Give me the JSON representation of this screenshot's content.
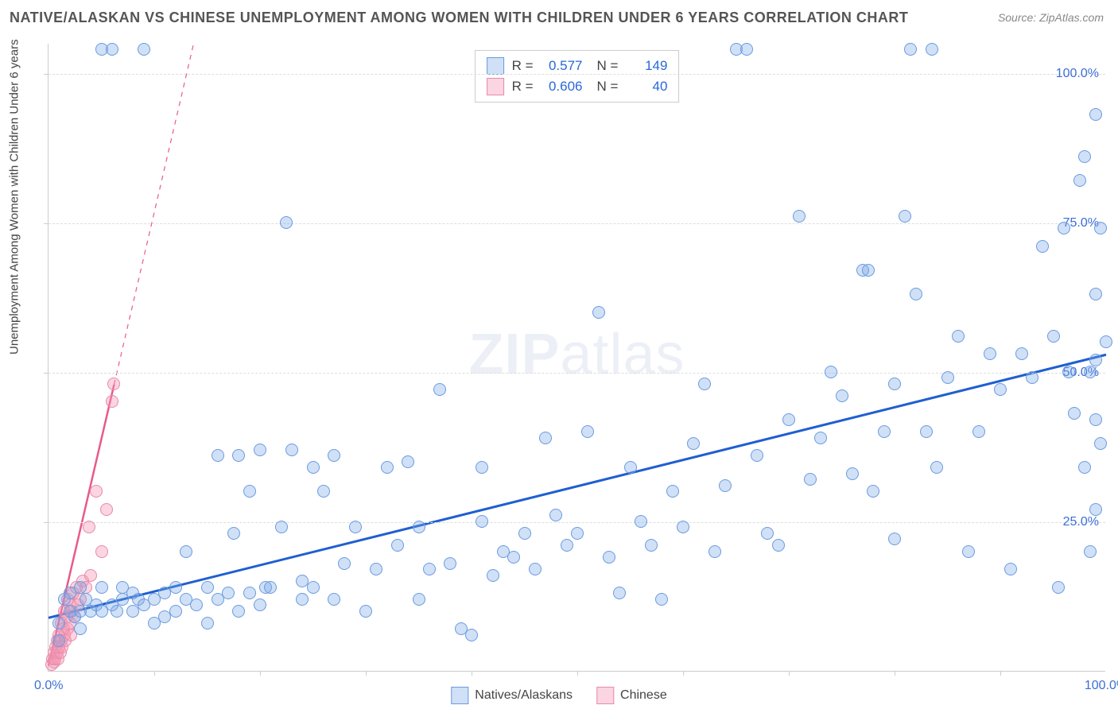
{
  "title": "NATIVE/ALASKAN VS CHINESE UNEMPLOYMENT AMONG WOMEN WITH CHILDREN UNDER 6 YEARS CORRELATION CHART",
  "source": "Source: ZipAtlas.com",
  "y_axis_label": "Unemployment Among Women with Children Under 6 years",
  "watermark_bold": "ZIP",
  "watermark_light": "atlas",
  "chart": {
    "type": "scatter",
    "xlim": [
      0,
      100
    ],
    "ylim": [
      0,
      105
    ],
    "x_ticks": [
      0,
      100
    ],
    "x_tick_labels": [
      "0.0%",
      "100.0%"
    ],
    "x_minor_ticks": [
      10,
      20,
      30,
      40,
      50,
      60,
      70,
      80,
      90
    ],
    "y_ticks": [
      25,
      50,
      75,
      100
    ],
    "y_tick_labels": [
      "25.0%",
      "50.0%",
      "75.0%",
      "100.0%"
    ],
    "background_color": "#ffffff",
    "grid_color": "#dddddd",
    "point_radius": 8,
    "point_stroke_width": 1.2,
    "series": {
      "natives": {
        "label": "Natives/Alaskans",
        "fill_color": "rgba(120,165,230,0.35)",
        "stroke_color": "#6a9be0",
        "trend_color": "#1f5fd0",
        "trend_width": 3,
        "trend": {
          "x1": 0,
          "y1": 9,
          "x2": 100,
          "y2": 53
        },
        "R": "0.577",
        "N": "149",
        "points": [
          [
            1,
            5
          ],
          [
            1,
            8
          ],
          [
            1.5,
            12
          ],
          [
            2,
            10
          ],
          [
            2,
            13
          ],
          [
            2.5,
            9
          ],
          [
            3,
            14
          ],
          [
            3,
            7
          ],
          [
            3,
            10
          ],
          [
            3.5,
            12
          ],
          [
            4,
            10
          ],
          [
            4.5,
            11
          ],
          [
            5,
            104
          ],
          [
            5,
            10
          ],
          [
            5,
            14
          ],
          [
            6,
            11
          ],
          [
            6,
            104
          ],
          [
            6.5,
            10
          ],
          [
            7,
            12
          ],
          [
            7,
            14
          ],
          [
            8,
            13
          ],
          [
            8,
            10
          ],
          [
            8.5,
            12
          ],
          [
            9,
            11
          ],
          [
            9,
            104
          ],
          [
            10,
            12
          ],
          [
            10,
            8
          ],
          [
            11,
            9
          ],
          [
            11,
            13
          ],
          [
            12,
            14
          ],
          [
            12,
            10
          ],
          [
            13,
            12
          ],
          [
            13,
            20
          ],
          [
            14,
            11
          ],
          [
            15,
            14
          ],
          [
            15,
            8
          ],
          [
            16,
            12
          ],
          [
            16,
            36
          ],
          [
            17,
            13
          ],
          [
            17.5,
            23
          ],
          [
            18,
            36
          ],
          [
            18,
            10
          ],
          [
            19,
            30
          ],
          [
            19,
            13
          ],
          [
            20,
            11
          ],
          [
            20,
            37
          ],
          [
            20.5,
            14
          ],
          [
            21,
            14
          ],
          [
            22,
            24
          ],
          [
            22.5,
            75
          ],
          [
            23,
            37
          ],
          [
            24,
            15
          ],
          [
            24,
            12
          ],
          [
            25,
            34
          ],
          [
            25,
            14
          ],
          [
            26,
            30
          ],
          [
            27,
            36
          ],
          [
            27,
            12
          ],
          [
            28,
            18
          ],
          [
            29,
            24
          ],
          [
            30,
            10
          ],
          [
            31,
            17
          ],
          [
            32,
            34
          ],
          [
            33,
            21
          ],
          [
            34,
            35
          ],
          [
            35,
            24
          ],
          [
            35,
            12
          ],
          [
            36,
            17
          ],
          [
            37,
            47
          ],
          [
            38,
            18
          ],
          [
            39,
            7
          ],
          [
            40,
            6
          ],
          [
            41,
            25
          ],
          [
            41,
            34
          ],
          [
            42,
            16
          ],
          [
            43,
            20
          ],
          [
            44,
            19
          ],
          [
            45,
            23
          ],
          [
            46,
            17
          ],
          [
            47,
            39
          ],
          [
            48,
            26
          ],
          [
            49,
            21
          ],
          [
            50,
            23
          ],
          [
            51,
            40
          ],
          [
            52,
            60
          ],
          [
            53,
            19
          ],
          [
            54,
            13
          ],
          [
            55,
            34
          ],
          [
            56,
            25
          ],
          [
            57,
            21
          ],
          [
            58,
            12
          ],
          [
            59,
            30
          ],
          [
            60,
            24
          ],
          [
            61,
            38
          ],
          [
            62,
            48
          ],
          [
            63,
            20
          ],
          [
            64,
            31
          ],
          [
            65,
            104
          ],
          [
            66,
            104
          ],
          [
            67,
            36
          ],
          [
            68,
            23
          ],
          [
            69,
            21
          ],
          [
            70,
            42
          ],
          [
            71,
            76
          ],
          [
            72,
            32
          ],
          [
            73,
            39
          ],
          [
            74,
            50
          ],
          [
            75,
            46
          ],
          [
            76,
            33
          ],
          [
            77,
            67
          ],
          [
            77.5,
            67
          ],
          [
            78,
            30
          ],
          [
            79,
            40
          ],
          [
            80,
            22
          ],
          [
            80,
            48
          ],
          [
            81,
            76
          ],
          [
            81.5,
            104
          ],
          [
            82,
            63
          ],
          [
            83,
            40
          ],
          [
            83.5,
            104
          ],
          [
            84,
            34
          ],
          [
            85,
            49
          ],
          [
            86,
            56
          ],
          [
            87,
            20
          ],
          [
            88,
            40
          ],
          [
            89,
            53
          ],
          [
            90,
            47
          ],
          [
            91,
            17
          ],
          [
            92,
            53
          ],
          [
            93,
            49
          ],
          [
            94,
            71
          ],
          [
            95,
            56
          ],
          [
            95.5,
            14
          ],
          [
            96,
            74
          ],
          [
            96.5,
            50
          ],
          [
            97,
            43
          ],
          [
            97.5,
            82
          ],
          [
            98,
            86
          ],
          [
            98,
            34
          ],
          [
            98.5,
            50
          ],
          [
            98.5,
            20
          ],
          [
            99,
            27
          ],
          [
            99,
            63
          ],
          [
            99,
            42
          ],
          [
            99,
            52
          ],
          [
            99,
            93
          ],
          [
            99.5,
            38
          ],
          [
            99.5,
            74
          ],
          [
            100,
            55
          ]
        ]
      },
      "chinese": {
        "label": "Chinese",
        "fill_color": "rgba(245,150,180,0.4)",
        "stroke_color": "#e88aa8",
        "trend_color": "#e85a8a",
        "trend_width": 2.5,
        "trend_dashed_extend": true,
        "trend": {
          "x1": 0,
          "y1": 1,
          "x2": 6.2,
          "y2": 48
        },
        "R": "0.606",
        "N": "40",
        "points": [
          [
            0.3,
            1
          ],
          [
            0.4,
            2
          ],
          [
            0.5,
            1.5
          ],
          [
            0.5,
            3
          ],
          [
            0.6,
            2
          ],
          [
            0.7,
            4
          ],
          [
            0.8,
            3
          ],
          [
            0.8,
            5
          ],
          [
            0.9,
            2
          ],
          [
            1,
            4
          ],
          [
            1,
            6
          ],
          [
            1.1,
            3
          ],
          [
            1.2,
            8
          ],
          [
            1.2,
            5
          ],
          [
            1.3,
            4
          ],
          [
            1.4,
            7
          ],
          [
            1.5,
            10
          ],
          [
            1.5,
            6
          ],
          [
            1.6,
            5
          ],
          [
            1.7,
            9
          ],
          [
            1.8,
            12
          ],
          [
            1.8,
            7
          ],
          [
            2,
            11
          ],
          [
            2,
            8
          ],
          [
            2.1,
            6
          ],
          [
            2.2,
            10
          ],
          [
            2.3,
            13
          ],
          [
            2.5,
            9
          ],
          [
            2.6,
            14
          ],
          [
            2.8,
            11
          ],
          [
            3,
            12
          ],
          [
            3.2,
            15
          ],
          [
            3.5,
            14
          ],
          [
            3.8,
            24
          ],
          [
            4,
            16
          ],
          [
            4.5,
            30
          ],
          [
            5,
            20
          ],
          [
            5.5,
            27
          ],
          [
            6,
            45
          ],
          [
            6.2,
            48
          ]
        ]
      }
    },
    "legend_top_labels": {
      "R": "R =",
      "N": "N ="
    },
    "legend_bottom_order": [
      "natives",
      "chinese"
    ]
  }
}
